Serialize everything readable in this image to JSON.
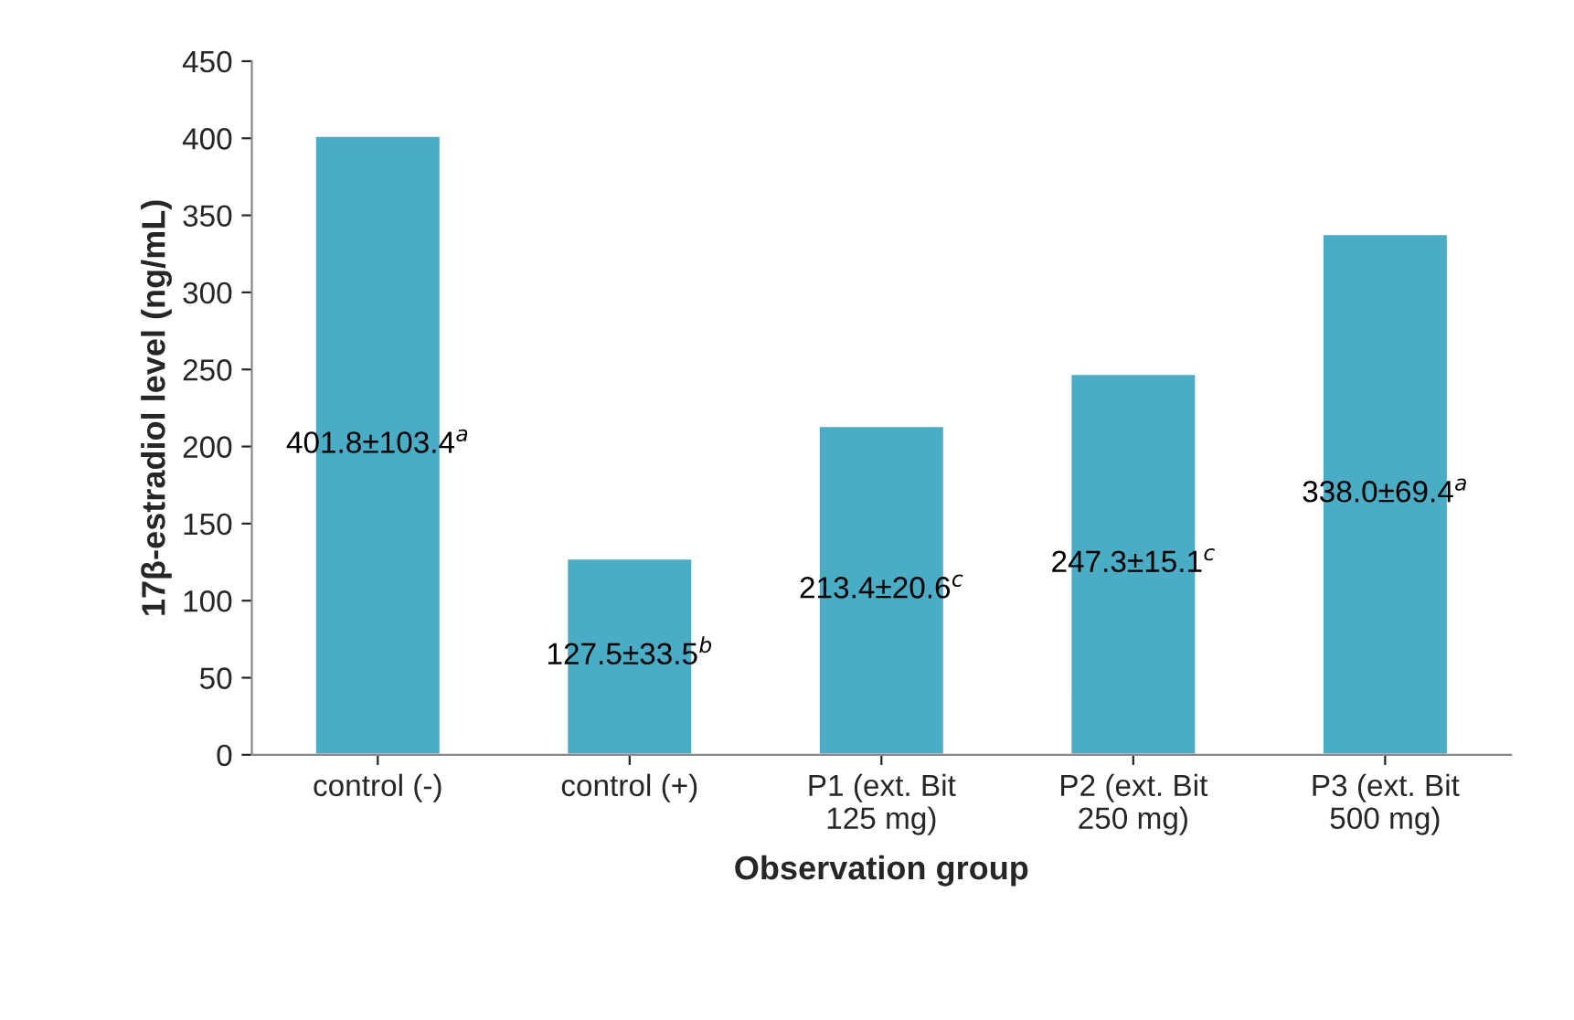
{
  "chart_data": {
    "type": "bar",
    "xlabel": "Observation group",
    "ylabel": "17β-estradiol level (ng/mL)",
    "categories": [
      "control (-)",
      "control (+)",
      "P1 (ext. Bit\n125 mg)",
      "P2 (ext. Bit\n250 mg)",
      "P3 (ext. Bit\n500 mg)"
    ],
    "values": [
      401.8,
      127.5,
      213.4,
      247.3,
      338.0
    ],
    "value_labels": [
      "401.8±103.4$^{a}$",
      "127.5±33.5$^{b}$",
      "213.4±20.6$^{c}$",
      "247.3±15.1$^{c}$",
      "338.0±69.4$^{a}$"
    ],
    "color": "#4bacc6",
    "ylim": [
      0,
      450
    ],
    "yticks": [
      0,
      50,
      100,
      150,
      200,
      250,
      300,
      350,
      400,
      450
    ],
    "grid": false,
    "legend": false
  }
}
